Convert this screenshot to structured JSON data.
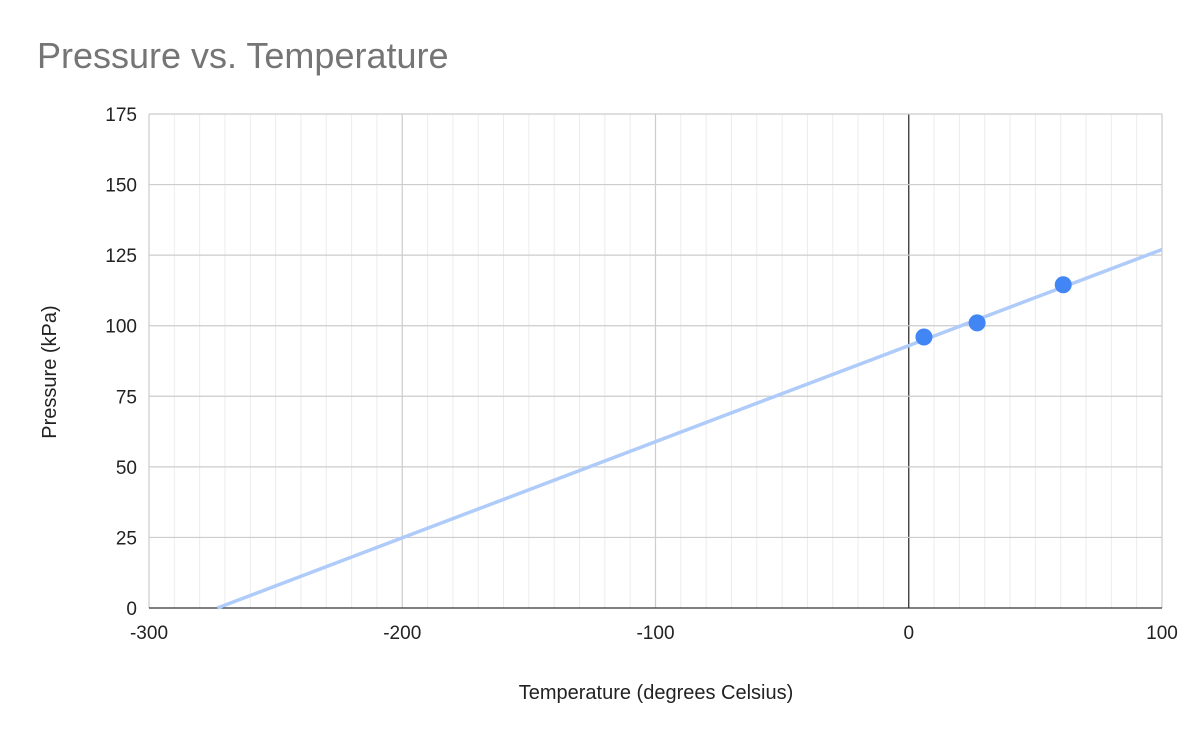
{
  "chart_data": {
    "type": "scatter",
    "title": "Pressure vs. Temperature",
    "xlabel": "Temperature (degrees Celsius)",
    "ylabel": "Pressure (kPa)",
    "xlim": [
      -300,
      100
    ],
    "ylim": [
      0,
      175
    ],
    "x_ticks": [
      "-300",
      "-200",
      "-100",
      "0",
      "100"
    ],
    "y_ticks": [
      "0",
      "25",
      "50",
      "75",
      "100",
      "125",
      "150",
      "175"
    ],
    "x_minor_step": 10,
    "y_major_step": 25,
    "grid": true,
    "legend": "none",
    "series": [
      {
        "points": [
          {
            "x": 6,
            "y": 96
          },
          {
            "x": 27,
            "y": 101
          },
          {
            "x": 61,
            "y": 114.5
          }
        ],
        "color": "#4285f4"
      }
    ],
    "trendline": {
      "type": "linear",
      "x": [
        -273,
        100
      ],
      "y": [
        0,
        127
      ],
      "color": "#aecbfa"
    }
  }
}
